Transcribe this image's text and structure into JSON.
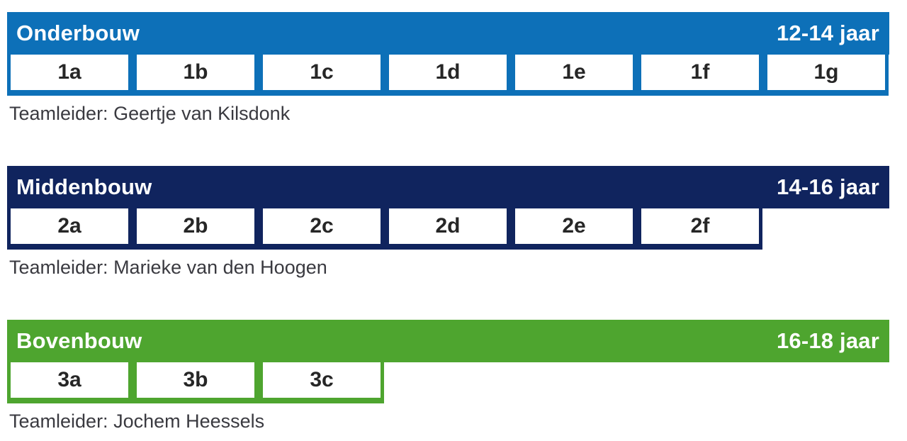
{
  "page": {
    "background_color": "#ffffff"
  },
  "sections": [
    {
      "title": "Onderbouw",
      "age_range": "12-14 jaar",
      "accent_color": "#0d70b8",
      "classes": [
        "1a",
        "1b",
        "1c",
        "1d",
        "1e",
        "1f",
        "1g"
      ],
      "teamleider": "Teamleider: Geertje van Kilsdonk"
    },
    {
      "title": "Middenbouw",
      "age_range": "14-16 jaar",
      "accent_color": "#10245e",
      "classes": [
        "2a",
        "2b",
        "2c",
        "2d",
        "2e",
        "2f"
      ],
      "teamleider": "Teamleider: Marieke van den Hoogen"
    },
    {
      "title": "Bovenbouw",
      "age_range": "16-18 jaar",
      "accent_color": "#4ea52f",
      "classes": [
        "3a",
        "3b",
        "3c"
      ],
      "teamleider": "Teamleider: Jochem Heessels"
    }
  ]
}
